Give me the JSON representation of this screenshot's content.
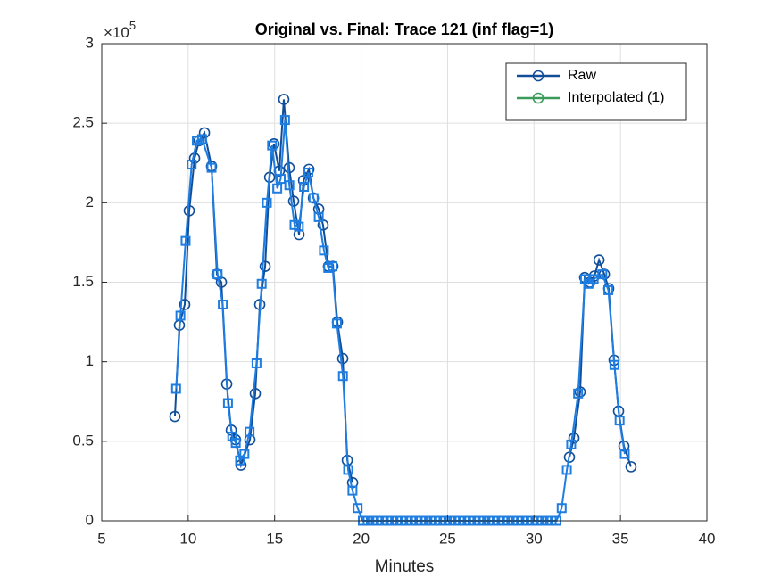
{
  "chart_data": {
    "type": "line",
    "title": "Original vs. Final: Trace 121 (inf flag=1)",
    "x_label": "Minutes",
    "y_multiplier": {
      "base": "×10",
      "exponent": "5"
    },
    "xlim": [
      5,
      40
    ],
    "xticks": [
      5,
      10,
      15,
      20,
      25,
      30,
      35,
      40
    ],
    "ylim": [
      0,
      300000
    ],
    "yticks": [
      {
        "value": 0,
        "label": "0"
      },
      {
        "value": 50000,
        "label": "0.5"
      },
      {
        "value": 100000,
        "label": "1"
      },
      {
        "value": 150000,
        "label": "1.5"
      },
      {
        "value": 200000,
        "label": "2"
      },
      {
        "value": 250000,
        "label": "2.5"
      },
      {
        "value": 300000,
        "label": "3"
      }
    ],
    "grid": true,
    "legend": "upper right",
    "series": [
      {
        "name": "Raw",
        "color": "#104e9a",
        "marker": "circle",
        "x": [
          9.23,
          9.49,
          9.8,
          10.06,
          10.37,
          10.63,
          10.94,
          11.35,
          11.66,
          11.92,
          12.23,
          12.49,
          12.74,
          13.05,
          13.57,
          13.88,
          14.14,
          14.45,
          14.71,
          14.96,
          15.27,
          15.53,
          15.84,
          16.1,
          16.41,
          16.67,
          16.98,
          17.24,
          17.55,
          17.8,
          18.11,
          18.37,
          18.63,
          18.94,
          19.2,
          19.51,
          25.0,
          32.05,
          32.31,
          32.67,
          32.93,
          33.24,
          33.5,
          33.76,
          34.07,
          34.32,
          34.63,
          34.89,
          35.2,
          35.61
        ],
        "values": [
          65600,
          123000,
          136000,
          195000,
          228000,
          239000,
          244000,
          223000,
          155000,
          150000,
          86000,
          57000,
          51000,
          35000,
          51000,
          80000,
          136000,
          160000,
          216000,
          237000,
          220000,
          265000,
          222000,
          201000,
          180000,
          214000,
          221000,
          203000,
          196000,
          186000,
          160000,
          160000,
          125000,
          102000,
          38000,
          24000,
          null,
          40000,
          52000,
          81000,
          153000,
          150000,
          154000,
          164000,
          155000,
          146000,
          101000,
          69000,
          47000,
          34000
        ]
      },
      {
        "name": "Interpolated (1)",
        "color": "#1e7de0",
        "legend_color": "#3a9b5a",
        "marker": "square",
        "x": [
          9.3,
          9.55,
          9.85,
          10.2,
          10.5,
          10.8,
          11.35,
          11.7,
          12.0,
          12.3,
          12.55,
          12.75,
          13.0,
          13.25,
          13.55,
          13.95,
          14.25,
          14.55,
          14.85,
          15.15,
          15.35,
          15.6,
          15.85,
          16.15,
          16.4,
          16.7,
          16.95,
          17.25,
          17.55,
          17.85,
          18.1,
          18.35,
          18.6,
          18.95,
          19.25,
          19.5,
          19.8,
          20.1,
          20.38,
          20.66,
          20.94,
          21.22,
          21.5,
          21.78,
          22.06,
          22.34,
          22.62,
          22.9,
          23.18,
          23.46,
          23.74,
          24.02,
          24.3,
          24.58,
          24.86,
          25.14,
          25.42,
          25.7,
          25.98,
          26.26,
          26.54,
          26.82,
          27.1,
          27.38,
          27.66,
          27.94,
          28.22,
          28.5,
          28.78,
          29.06,
          29.34,
          29.62,
          29.9,
          30.18,
          30.46,
          30.74,
          31.02,
          31.3,
          31.6,
          31.9,
          32.15,
          32.55,
          32.95,
          33.15,
          33.45,
          33.95,
          34.3,
          34.65,
          34.95,
          35.25
        ],
        "values": [
          83000,
          129000,
          176000,
          224000,
          239000,
          240000,
          222000,
          155000,
          136000,
          74000,
          53000,
          49000,
          38000,
          42000,
          56000,
          99000,
          149000,
          200000,
          236000,
          209000,
          215000,
          252000,
          211000,
          186000,
          185000,
          210000,
          219000,
          203000,
          191000,
          170000,
          159000,
          160000,
          124000,
          91000,
          32000,
          19000,
          8000,
          0,
          0,
          0,
          0,
          0,
          0,
          0,
          0,
          0,
          0,
          0,
          0,
          0,
          0,
          0,
          0,
          0,
          0,
          0,
          0,
          0,
          0,
          0,
          0,
          0,
          0,
          0,
          0,
          0,
          0,
          0,
          0,
          0,
          0,
          0,
          0,
          0,
          0,
          0,
          0,
          0,
          8000,
          32000,
          48000,
          80000,
          152000,
          149000,
          152000,
          155000,
          145000,
          98000,
          63000,
          42000
        ]
      }
    ]
  }
}
